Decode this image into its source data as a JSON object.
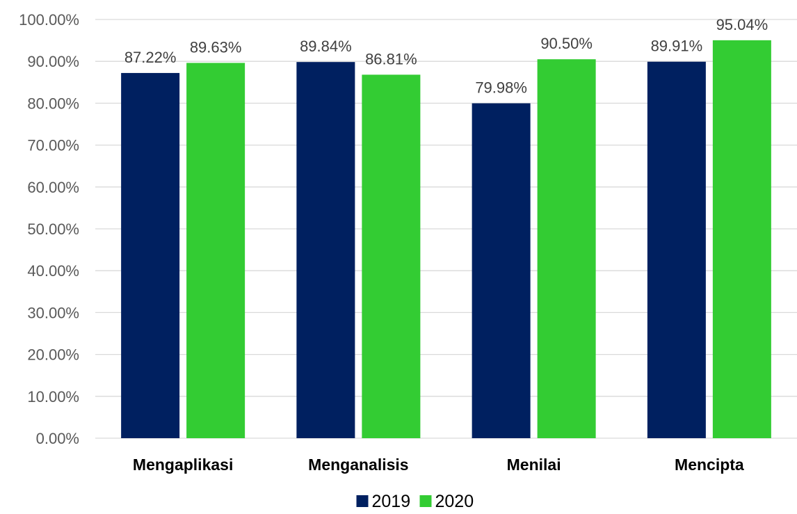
{
  "chart_data": {
    "type": "bar",
    "title": "",
    "xlabel": "",
    "ylabel": "",
    "ylim": [
      0,
      100
    ],
    "y_ticks": [
      "0.00%",
      "10.00%",
      "20.00%",
      "30.00%",
      "40.00%",
      "50.00%",
      "60.00%",
      "70.00%",
      "80.00%",
      "90.00%",
      "100.00%"
    ],
    "y_tick_values": [
      0,
      10,
      20,
      30,
      40,
      50,
      60,
      70,
      80,
      90,
      100
    ],
    "grid": true,
    "legend_position": "bottom",
    "categories": [
      "Mengaplikasi",
      "Menganalisis",
      "Menilai",
      "Mencipta"
    ],
    "series": [
      {
        "name": "2019",
        "color": "#002060",
        "values": [
          87.22,
          89.84,
          79.98,
          89.91
        ],
        "labels": [
          "87.22%",
          "89.84%",
          "79.98%",
          "89.91%"
        ]
      },
      {
        "name": "2020",
        "color": "#33cc33",
        "values": [
          89.63,
          86.81,
          90.5,
          95.04
        ],
        "labels": [
          "89.63%",
          "86.81%",
          "90.50%",
          "95.04%"
        ]
      }
    ]
  }
}
